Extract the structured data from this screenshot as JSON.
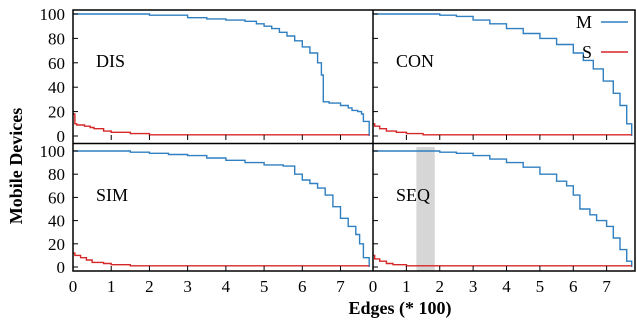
{
  "chart_data": {
    "type": "line",
    "xlabel": "Edges (* 100)",
    "ylabel": "Mobile Devices",
    "xlim": [
      0,
      7.85
    ],
    "ylim": [
      0,
      100
    ],
    "x_ticks": [
      0,
      1,
      2,
      3,
      4,
      5,
      6,
      7
    ],
    "y_ticks": [
      0,
      20,
      40,
      60,
      80,
      100
    ],
    "legend": {
      "placement": "top-right",
      "entries": [
        {
          "name": "M",
          "color": "#2f7fc1"
        },
        {
          "name": "S",
          "color": "#d62728"
        }
      ]
    },
    "grid": false,
    "panels": [
      {
        "label": "DIS",
        "series": [
          {
            "name": "M",
            "x": [
              0,
              1.5,
              2.0,
              2.5,
              3.0,
              3.5,
              4.0,
              4.5,
              4.8,
              5.0,
              5.2,
              5.4,
              5.6,
              5.8,
              6.0,
              6.2,
              6.4,
              6.5,
              6.55,
              6.7,
              7.0,
              7.2,
              7.3,
              7.45,
              7.55,
              7.6,
              7.75
            ],
            "y": [
              100,
              100,
              99,
              99,
              97,
              96,
              95,
              94,
              92,
              90,
              88,
              85,
              82,
              78,
              73,
              68,
              60,
              50,
              28,
              27,
              25,
              23,
              21,
              20,
              18,
              12,
              0
            ]
          },
          {
            "name": "S",
            "x": [
              0,
              0.05,
              0.1,
              0.3,
              0.45,
              0.55,
              0.8,
              1.0,
              1.5,
              2.0,
              7.75
            ],
            "y": [
              18,
              10,
              9,
              8,
              7,
              6,
              4,
              3,
              2,
              1,
              1
            ]
          }
        ]
      },
      {
        "label": "CON",
        "series": [
          {
            "name": "M",
            "x": [
              0,
              1.5,
              2.0,
              2.5,
              3.0,
              3.5,
              4.0,
              4.5,
              5.0,
              5.5,
              6.0,
              6.3,
              6.6,
              6.9,
              7.2,
              7.4,
              7.6,
              7.75
            ],
            "y": [
              100,
              100,
              99,
              98,
              95,
              92,
              88,
              84,
              80,
              75,
              68,
              62,
              55,
              45,
              35,
              25,
              10,
              0
            ]
          },
          {
            "name": "S",
            "x": [
              0,
              0.05,
              0.2,
              0.4,
              0.7,
              1.0,
              1.5,
              7.75
            ],
            "y": [
              10,
              8,
              6,
              4,
              3,
              2,
              1,
              1
            ]
          }
        ]
      },
      {
        "label": "SIM",
        "series": [
          {
            "name": "M",
            "x": [
              0,
              1.0,
              1.5,
              2.0,
              2.5,
              3.0,
              3.5,
              4.0,
              4.5,
              5.0,
              5.5,
              5.8,
              6.0,
              6.2,
              6.4,
              6.6,
              6.8,
              7.0,
              7.2,
              7.4,
              7.5,
              7.6,
              7.75
            ],
            "y": [
              100,
              100,
              99,
              98,
              97,
              96,
              94,
              92,
              90,
              88,
              87,
              80,
              75,
              72,
              68,
              62,
              52,
              42,
              35,
              28,
              20,
              8,
              0
            ]
          },
          {
            "name": "S",
            "x": [
              0,
              0.05,
              0.2,
              0.35,
              0.5,
              0.8,
              1.0,
              1.5,
              7.75
            ],
            "y": [
              12,
              10,
              8,
              6,
              4,
              3,
              2,
              1,
              1
            ]
          }
        ]
      },
      {
        "label": "SEQ",
        "shaded_x_range": [
          1.3,
          1.85
        ],
        "series": [
          {
            "name": "M",
            "x": [
              0,
              1.5,
              2.0,
              2.5,
              3.0,
              3.5,
              4.0,
              4.5,
              5.0,
              5.5,
              5.8,
              6.0,
              6.2,
              6.5,
              6.7,
              7.0,
              7.2,
              7.4,
              7.6,
              7.75
            ],
            "y": [
              100,
              100,
              99,
              98,
              96,
              93,
              90,
              86,
              80,
              74,
              70,
              62,
              50,
              45,
              40,
              35,
              25,
              15,
              5,
              0
            ]
          },
          {
            "name": "S",
            "x": [
              0,
              0.05,
              0.2,
              0.4,
              0.6,
              1.0,
              1.5,
              7.75
            ],
            "y": [
              10,
              7,
              5,
              3,
              2,
              1,
              1,
              1
            ]
          }
        ]
      }
    ]
  }
}
